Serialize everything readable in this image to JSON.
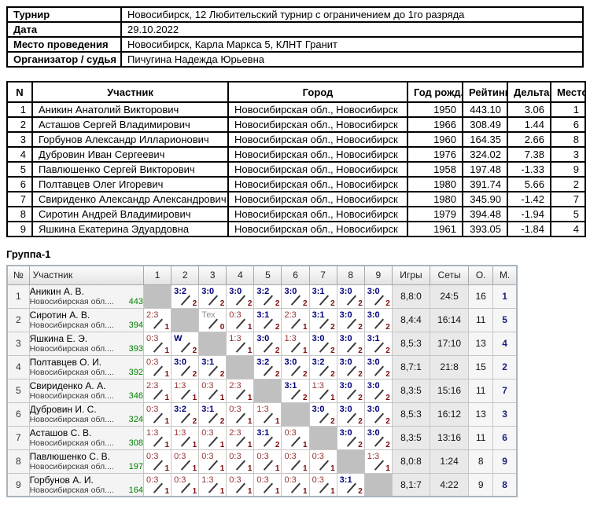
{
  "info_table": {
    "rows": [
      {
        "label": "Турнир",
        "value": "Новосибирск, 12 Любительский турнир с ограничением до 1го разряда"
      },
      {
        "label": "Дата",
        "value": "29.10.2022"
      },
      {
        "label": "Место проведения",
        "value": "Новосибирск, Карла Маркса 5, КЛНТ Гранит"
      },
      {
        "label": "Организатор / судья",
        "value": "Пичугина Надежда Юрьевна"
      }
    ]
  },
  "participants_table": {
    "headers": [
      "N",
      "Участник",
      "Город",
      "Год рожд.",
      "Рейтинг",
      "Дельта",
      "Место"
    ],
    "rows": [
      {
        "n": "1",
        "name": "Аникин Анатолий Викторович",
        "city": "Новосибирская обл., Новосибирск",
        "year": "1950",
        "rating": "443.10",
        "delta": "3.06",
        "place": "1"
      },
      {
        "n": "2",
        "name": "Асташов Сергей Владимирович",
        "city": "Новосибирская обл., Новосибирск",
        "year": "1966",
        "rating": "308.49",
        "delta": "1.44",
        "place": "6"
      },
      {
        "n": "3",
        "name": "Горбунов Александр Илларионович",
        "city": "Новосибирская обл., Новосибирск",
        "year": "1960",
        "rating": "164.35",
        "delta": "2.66",
        "place": "8"
      },
      {
        "n": "4",
        "name": "Дубровин Иван Сергеевич",
        "city": "Новосибирская обл., Новосибирск",
        "year": "1976",
        "rating": "324.02",
        "delta": "7.38",
        "place": "3"
      },
      {
        "n": "5",
        "name": "Павлюшенко Сергей Викторович",
        "city": "Новосибирская обл., Новосибирск",
        "year": "1958",
        "rating": "197.48",
        "delta": "-1.33",
        "place": "9"
      },
      {
        "n": "6",
        "name": "Полтавцев Олег Игоревич",
        "city": "Новосибирская обл., Новосибирск",
        "year": "1980",
        "rating": "391.74",
        "delta": "5.66",
        "place": "2"
      },
      {
        "n": "7",
        "name": "Свириденко Александр Александрович",
        "city": "Новосибирская обл., Новосибирск",
        "year": "1980",
        "rating": "345.90",
        "delta": "-1.42",
        "place": "7"
      },
      {
        "n": "8",
        "name": "Сиротин Андрей Владимирович",
        "city": "Новосибирская обл., Новосибирск",
        "year": "1979",
        "rating": "394.48",
        "delta": "-1.94",
        "place": "5"
      },
      {
        "n": "9",
        "name": "Яшкина Екатерина Эдуардовна",
        "city": "Новосибирская обл., Новосибирск",
        "year": "1961",
        "rating": "393.05",
        "delta": "-1.84",
        "place": "4"
      }
    ]
  },
  "group_table": {
    "title": "Группа-1",
    "headers": {
      "num": "№",
      "name": "Участник",
      "opponents": [
        "1",
        "2",
        "3",
        "4",
        "5",
        "6",
        "7",
        "8",
        "9"
      ],
      "games": "Игры",
      "sets": "Сеты",
      "points": "О.",
      "place": "М."
    },
    "rows": [
      {
        "num": "1",
        "name": "Аникин А. В.",
        "region": "Новосибирская обл....",
        "rating": "443",
        "cells": [
          null,
          {
            "score": "3:2",
            "pts": "2",
            "type": "win"
          },
          {
            "score": "3:0",
            "pts": "2",
            "type": "win"
          },
          {
            "score": "3:0",
            "pts": "2",
            "type": "win"
          },
          {
            "score": "3:2",
            "pts": "2",
            "type": "win"
          },
          {
            "score": "3:0",
            "pts": "2",
            "type": "win"
          },
          {
            "score": "3:1",
            "pts": "2",
            "type": "win"
          },
          {
            "score": "3:0",
            "pts": "2",
            "type": "win"
          },
          {
            "score": "3:0",
            "pts": "2",
            "type": "win"
          }
        ],
        "games": "8,8:0",
        "sets": "24:5",
        "points": "16",
        "place": "1"
      },
      {
        "num": "2",
        "name": "Сиротин А. В.",
        "region": "Новосибирская обл....",
        "rating": "394",
        "cells": [
          {
            "score": "2:3",
            "pts": "1",
            "type": "loss"
          },
          null,
          {
            "score": "Тех",
            "pts": "0",
            "type": "tech"
          },
          {
            "score": "0:3",
            "pts": "1",
            "type": "loss"
          },
          {
            "score": "3:1",
            "pts": "2",
            "type": "win"
          },
          {
            "score": "2:3",
            "pts": "1",
            "type": "loss"
          },
          {
            "score": "3:1",
            "pts": "2",
            "type": "win"
          },
          {
            "score": "3:0",
            "pts": "2",
            "type": "win"
          },
          {
            "score": "3:0",
            "pts": "2",
            "type": "win"
          }
        ],
        "games": "8,4:4",
        "sets": "16:14",
        "points": "11",
        "place": "5"
      },
      {
        "num": "3",
        "name": "Яшкина Е. Э.",
        "region": "Новосибирская обл....",
        "rating": "393",
        "cells": [
          {
            "score": "0:3",
            "pts": "1",
            "type": "loss"
          },
          {
            "score": "W",
            "pts": "2",
            "type": "wo"
          },
          null,
          {
            "score": "1:3",
            "pts": "1",
            "type": "loss"
          },
          {
            "score": "3:0",
            "pts": "2",
            "type": "win"
          },
          {
            "score": "1:3",
            "pts": "1",
            "type": "loss"
          },
          {
            "score": "3:0",
            "pts": "2",
            "type": "win"
          },
          {
            "score": "3:0",
            "pts": "2",
            "type": "win"
          },
          {
            "score": "3:1",
            "pts": "2",
            "type": "win"
          }
        ],
        "games": "8,5:3",
        "sets": "17:10",
        "points": "13",
        "place": "4"
      },
      {
        "num": "4",
        "name": "Полтавцев О. И.",
        "region": "Новосибирская обл....",
        "rating": "392",
        "cells": [
          {
            "score": "0:3",
            "pts": "1",
            "type": "loss"
          },
          {
            "score": "3:0",
            "pts": "2",
            "type": "win"
          },
          {
            "score": "3:1",
            "pts": "2",
            "type": "win"
          },
          null,
          {
            "score": "3:2",
            "pts": "2",
            "type": "win"
          },
          {
            "score": "3:0",
            "pts": "2",
            "type": "win"
          },
          {
            "score": "3:2",
            "pts": "2",
            "type": "win"
          },
          {
            "score": "3:0",
            "pts": "2",
            "type": "win"
          },
          {
            "score": "3:0",
            "pts": "2",
            "type": "win"
          }
        ],
        "games": "8,7:1",
        "sets": "21:8",
        "points": "15",
        "place": "2"
      },
      {
        "num": "5",
        "name": "Свириденко А. А.",
        "region": "Новосибирская обл....",
        "rating": "346",
        "cells": [
          {
            "score": "2:3",
            "pts": "1",
            "type": "loss"
          },
          {
            "score": "1:3",
            "pts": "1",
            "type": "loss"
          },
          {
            "score": "0:3",
            "pts": "1",
            "type": "loss"
          },
          {
            "score": "2:3",
            "pts": "1",
            "type": "loss"
          },
          null,
          {
            "score": "3:1",
            "pts": "2",
            "type": "win"
          },
          {
            "score": "1:3",
            "pts": "1",
            "type": "loss"
          },
          {
            "score": "3:0",
            "pts": "2",
            "type": "win"
          },
          {
            "score": "3:0",
            "pts": "2",
            "type": "win"
          }
        ],
        "games": "8,3:5",
        "sets": "15:16",
        "points": "11",
        "place": "7"
      },
      {
        "num": "6",
        "name": "Дубровин И. С.",
        "region": "Новосибирская обл....",
        "rating": "324",
        "cells": [
          {
            "score": "0:3",
            "pts": "1",
            "type": "loss"
          },
          {
            "score": "3:2",
            "pts": "2",
            "type": "win"
          },
          {
            "score": "3:1",
            "pts": "2",
            "type": "win"
          },
          {
            "score": "0:3",
            "pts": "1",
            "type": "loss"
          },
          {
            "score": "1:3",
            "pts": "1",
            "type": "loss"
          },
          null,
          {
            "score": "3:0",
            "pts": "2",
            "type": "win"
          },
          {
            "score": "3:0",
            "pts": "2",
            "type": "win"
          },
          {
            "score": "3:0",
            "pts": "2",
            "type": "win"
          }
        ],
        "games": "8,5:3",
        "sets": "16:12",
        "points": "13",
        "place": "3"
      },
      {
        "num": "7",
        "name": "Асташов С. В.",
        "region": "Новосибирская обл....",
        "rating": "308",
        "cells": [
          {
            "score": "1:3",
            "pts": "1",
            "type": "loss"
          },
          {
            "score": "1:3",
            "pts": "1",
            "type": "loss"
          },
          {
            "score": "0:3",
            "pts": "1",
            "type": "loss"
          },
          {
            "score": "2:3",
            "pts": "1",
            "type": "loss"
          },
          {
            "score": "3:1",
            "pts": "2",
            "type": "win"
          },
          {
            "score": "0:3",
            "pts": "1",
            "type": "loss"
          },
          null,
          {
            "score": "3:0",
            "pts": "2",
            "type": "win"
          },
          {
            "score": "3:0",
            "pts": "2",
            "type": "win"
          }
        ],
        "games": "8,3:5",
        "sets": "13:16",
        "points": "11",
        "place": "6"
      },
      {
        "num": "8",
        "name": "Павлюшенко С. В.",
        "region": "Новосибирская обл....",
        "rating": "197",
        "cells": [
          {
            "score": "0:3",
            "pts": "1",
            "type": "loss"
          },
          {
            "score": "0:3",
            "pts": "1",
            "type": "loss"
          },
          {
            "score": "0:3",
            "pts": "1",
            "type": "loss"
          },
          {
            "score": "0:3",
            "pts": "1",
            "type": "loss"
          },
          {
            "score": "0:3",
            "pts": "1",
            "type": "loss"
          },
          {
            "score": "0:3",
            "pts": "1",
            "type": "loss"
          },
          {
            "score": "0:3",
            "pts": "1",
            "type": "loss"
          },
          null,
          {
            "score": "1:3",
            "pts": "1",
            "type": "loss"
          }
        ],
        "games": "8,0:8",
        "sets": "1:24",
        "points": "8",
        "place": "9"
      },
      {
        "num": "9",
        "name": "Горбунов А. И.",
        "region": "Новосибирская обл....",
        "rating": "164",
        "cells": [
          {
            "score": "0:3",
            "pts": "1",
            "type": "loss"
          },
          {
            "score": "0:3",
            "pts": "1",
            "type": "loss"
          },
          {
            "score": "1:3",
            "pts": "1",
            "type": "loss"
          },
          {
            "score": "0:3",
            "pts": "1",
            "type": "loss"
          },
          {
            "score": "0:3",
            "pts": "1",
            "type": "loss"
          },
          {
            "score": "0:3",
            "pts": "1",
            "type": "loss"
          },
          {
            "score": "0:3",
            "pts": "1",
            "type": "loss"
          },
          {
            "score": "3:1",
            "pts": "2",
            "type": "win"
          },
          null
        ],
        "games": "8,1:7",
        "sets": "4:22",
        "points": "9",
        "place": "8"
      }
    ]
  },
  "colors": {
    "win_score": "#00007d",
    "loss_score": "#993333",
    "points_digit": "#7d0a0a",
    "rating_green": "#008000",
    "place_navy": "#1a237e",
    "self_cell": "#c0c0c0"
  }
}
